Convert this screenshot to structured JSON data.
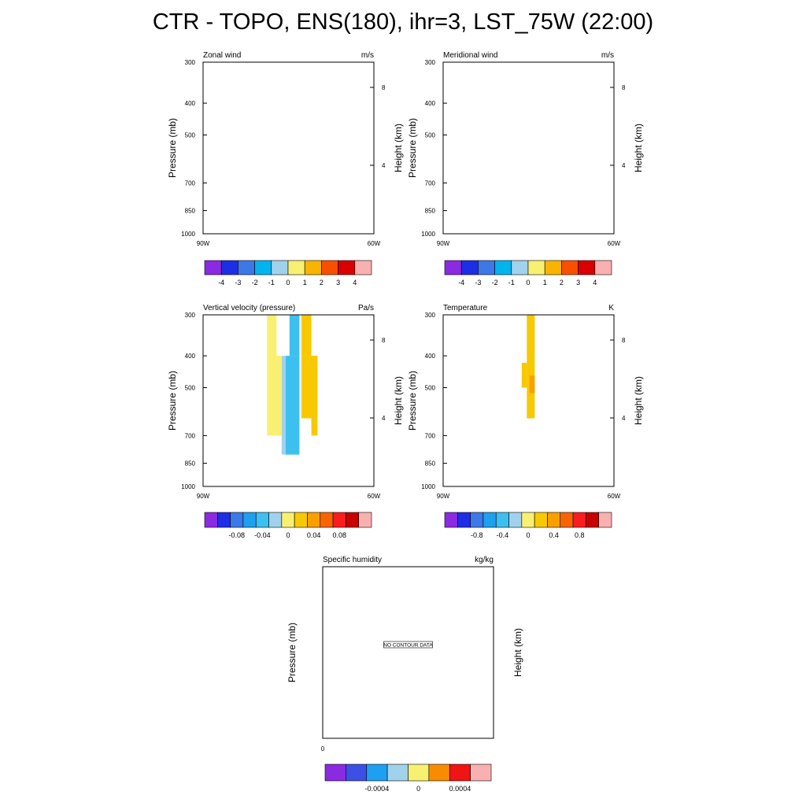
{
  "title": "CTR - TOPO, ENS(180), ihr=3, LST_75W (22:00)",
  "chart_data": [
    {
      "type": "contour",
      "title": "Zonal wind",
      "units": "m/s",
      "ylabel": "Pressure (mb)",
      "ylabel_right": "Height (km)",
      "pressure_ticks": [
        "300",
        "400",
        "500",
        "700",
        "850",
        "1000"
      ],
      "height_ticks": [
        "8",
        "4"
      ],
      "lon_ticks": [
        "90W",
        "60W"
      ],
      "colorbar": {
        "colors": [
          "#8a2be2",
          "#1e2ee6",
          "#3c78e6",
          "#00b4f0",
          "#a0d2ec",
          "#f8f070",
          "#f8b400",
          "#f85000",
          "#d80000",
          "#f8b0b0"
        ],
        "labels": [
          "-4",
          "-3",
          "-2",
          "-1",
          "0",
          "1",
          "2",
          "3",
          "4"
        ]
      },
      "fills": []
    },
    {
      "type": "contour",
      "title": "Meridional wind",
      "units": "m/s",
      "ylabel": "Pressure (mb)",
      "ylabel_right": "Height (km)",
      "pressure_ticks": [
        "300",
        "400",
        "500",
        "700",
        "850",
        "1000"
      ],
      "height_ticks": [
        "8",
        "4"
      ],
      "lon_ticks": [
        "90W",
        "60W"
      ],
      "colorbar": {
        "colors": [
          "#8a2be2",
          "#1e2ee6",
          "#3c78e6",
          "#00b4f0",
          "#a0d2ec",
          "#f8f070",
          "#f8b400",
          "#f85000",
          "#d80000",
          "#f8b0b0"
        ],
        "labels": [
          "-4",
          "-3",
          "-2",
          "-1",
          "0",
          "1",
          "2",
          "3",
          "4"
        ]
      },
      "fills": []
    },
    {
      "type": "contour",
      "title": "Vertical velocity (pressure)",
      "units": "Pa/s",
      "ylabel": "Pressure (mb)",
      "ylabel_right": "Height (km)",
      "pressure_ticks": [
        "300",
        "400",
        "500",
        "700",
        "850",
        "1000"
      ],
      "height_ticks": [
        "8",
        "4"
      ],
      "lon_ticks": [
        "90W",
        "60W"
      ],
      "colorbar": {
        "colors": [
          "#8a2be2",
          "#1e2ee6",
          "#3c78e6",
          "#1ea0f0",
          "#3cc0f0",
          "#a0d2ec",
          "#f8f070",
          "#f8c800",
          "#f8a000",
          "#f86400",
          "#f81e1e",
          "#c80000",
          "#f8b0b0"
        ],
        "labels": [
          "-0.08",
          "-0.04",
          "0",
          "0.04",
          "0.08"
        ],
        "label_slots": [
          1.5,
          3.5,
          5.5,
          7.5,
          9.5
        ]
      },
      "fills": [
        {
          "color": "#f8f070",
          "lon": [
            -81.3,
            -78.5
          ],
          "p": [
            300,
            700
          ]
        },
        {
          "color": "#f8f070",
          "lon": [
            -78.5,
            -77.0
          ],
          "p": [
            400,
            700
          ]
        },
        {
          "color": "#a0d2ec",
          "lon": [
            -77.0,
            -75.8
          ],
          "p": [
            400,
            800
          ]
        },
        {
          "color": "#3cc0f0",
          "lon": [
            -75.8,
            -71.8
          ],
          "p": [
            400,
            800
          ]
        },
        {
          "color": "#3cc0f0",
          "lon": [
            -74.7,
            -71.8
          ],
          "p": [
            300,
            400
          ]
        },
        {
          "color": "#f8c800",
          "lon": [
            -71.2,
            -68.3
          ],
          "p": [
            300,
            400
          ]
        },
        {
          "color": "#f8c800",
          "lon": [
            -71.2,
            -66.5
          ],
          "p": [
            400,
            620
          ]
        },
        {
          "color": "#f8c800",
          "lon": [
            -68.3,
            -66.5
          ],
          "p": [
            620,
            700
          ]
        }
      ]
    },
    {
      "type": "contour",
      "title": "Temperature",
      "units": "K",
      "ylabel": "Pressure (mb)",
      "ylabel_right": "Height (km)",
      "pressure_ticks": [
        "300",
        "400",
        "500",
        "700",
        "850",
        "1000"
      ],
      "height_ticks": [
        "8",
        "4"
      ],
      "lon_ticks": [
        "90W",
        "60W"
      ],
      "colorbar": {
        "colors": [
          "#8a2be2",
          "#1e2ee6",
          "#3c78e6",
          "#1ea0f0",
          "#3cc0f0",
          "#a0d2ec",
          "#f8f070",
          "#f8c800",
          "#f8a000",
          "#f86400",
          "#f81e1e",
          "#c80000",
          "#f8b0b0"
        ],
        "labels": [
          "-0.8",
          "-0.4",
          "0",
          "0.4",
          "0.8"
        ],
        "label_slots": [
          1.5,
          3.5,
          5.5,
          7.5,
          9.5
        ]
      },
      "fills": [
        {
          "color": "#f8c800",
          "lon": [
            -75.5,
            -73.2
          ],
          "p": [
            300,
            620
          ]
        },
        {
          "color": "#f8c800",
          "lon": [
            -77.0,
            -75.5
          ],
          "p": [
            420,
            500
          ]
        },
        {
          "color": "#f8a000",
          "lon": [
            -74.7,
            -73.2
          ],
          "p": [
            460,
            520
          ]
        }
      ]
    },
    {
      "type": "contour",
      "title": "Specific humidity",
      "units": "kg/kg",
      "ylabel": "Pressure (mb)",
      "ylabel_right": "Height (km)",
      "x_ticks": [
        "0"
      ],
      "notice": "NO CONTOUR DATA",
      "colorbar": {
        "colors": [
          "#8a2be2",
          "#3c50e6",
          "#1ea0f0",
          "#a0d2ec",
          "#f8f070",
          "#f88c00",
          "#f01414",
          "#f8b0b0"
        ],
        "labels": [
          "-0.0004",
          "0",
          "0.0004"
        ],
        "label_slots": [
          1.5,
          3.5,
          5.5
        ]
      },
      "fills": []
    }
  ]
}
